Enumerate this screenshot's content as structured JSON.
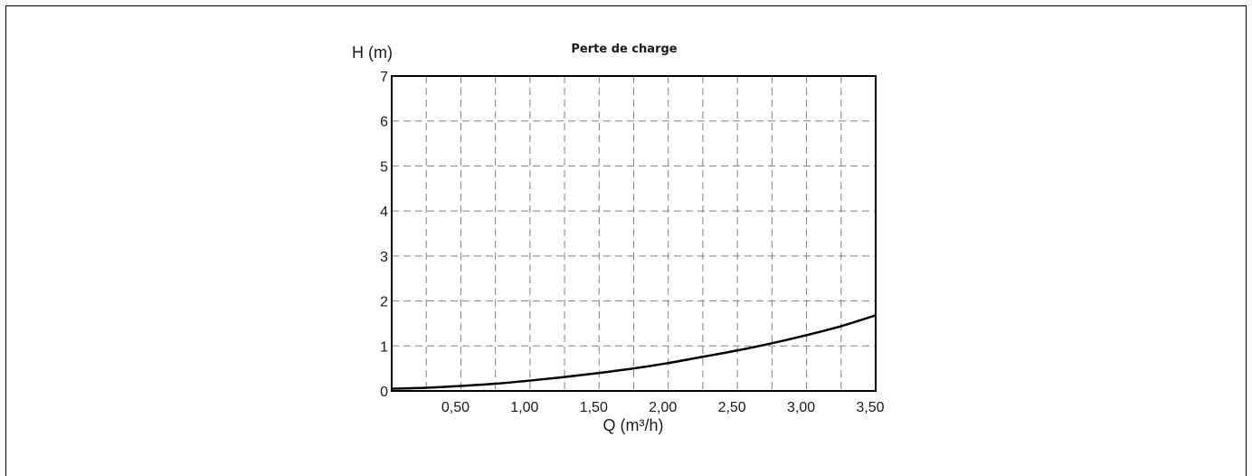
{
  "chart_data": {
    "type": "line",
    "title": "Perte de charge",
    "xlabel": "Q (m³/h)",
    "ylabel": "H (m)",
    "xlim": [
      0,
      3.5
    ],
    "ylim": [
      0,
      7
    ],
    "x_ticks": [
      0.5,
      1.0,
      1.5,
      2.0,
      2.5,
      3.0,
      3.5
    ],
    "x_tick_labels": [
      "0,50",
      "1,00",
      "1,50",
      "2,00",
      "2,50",
      "3,00",
      "3,50"
    ],
    "y_ticks": [
      0,
      1,
      2,
      3,
      4,
      5,
      6,
      7
    ],
    "y_tick_labels": [
      "0",
      "1",
      "2",
      "3",
      "4",
      "5",
      "6",
      "7"
    ],
    "x_grid_step": 0.25,
    "grid": "dashed",
    "series": [
      {
        "x": [
          0,
          0.25,
          0.5,
          0.75,
          1.0,
          1.25,
          1.5,
          1.75,
          2.0,
          2.25,
          2.5,
          2.75,
          3.0,
          3.25,
          3.5
        ],
        "y": [
          0.05,
          0.07,
          0.11,
          0.16,
          0.23,
          0.31,
          0.4,
          0.5,
          0.62,
          0.76,
          0.9,
          1.06,
          1.24,
          1.44,
          1.68
        ]
      }
    ],
    "colors": {
      "line": "#000000",
      "grid": "#808080",
      "text": "#1a1a1a"
    }
  }
}
